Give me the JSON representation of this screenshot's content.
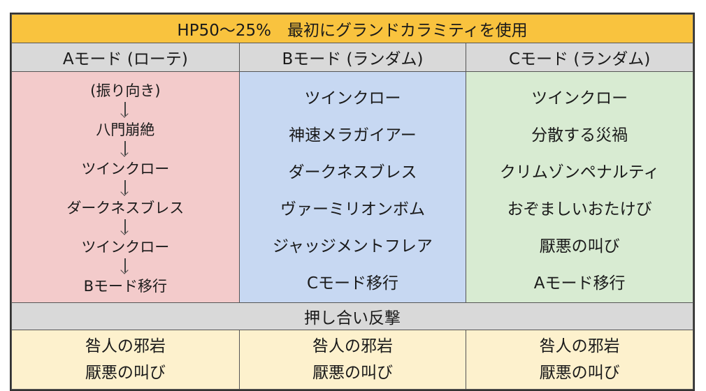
{
  "title": "HP50～25%　最初にグランドカラミティを使用",
  "columns": [
    {
      "header": "Aモード (ローテ)"
    },
    {
      "header": "Bモード (ランダム)"
    },
    {
      "header": "Cモード (ランダム)"
    }
  ],
  "mode_a_flow": [
    "(振り向き)",
    "八門崩絶",
    "ツインクロー",
    "ダークネスブレス",
    "ツインクロー",
    "Bモード移行"
  ],
  "mode_b_list": [
    "ツインクロー",
    "神速メラガイアー",
    "ダークネスブレス",
    "ヴァーミリオンボム",
    "ジャッジメントフレア",
    "Cモード移行"
  ],
  "mode_c_list": [
    "ツインクロー",
    "分散する災禍",
    "クリムゾンペナルティ",
    "おぞましいおたけび",
    "厭悪の叫び",
    "Aモード移行"
  ],
  "push_back_label": "押し合い反撃",
  "push_back_actions": [
    [
      "咎人の邪岩",
      "厭悪の叫び"
    ],
    [
      "咎人の邪岩",
      "厭悪の叫び"
    ],
    [
      "咎人の邪岩",
      "厭悪の叫び"
    ]
  ],
  "colors": {
    "title_bg": "#f9c33e",
    "header_bg": "#d9d9d9",
    "mode_a_bg": "#f3cbcb",
    "mode_b_bg": "#c7d8f2",
    "mode_c_bg": "#d8ebd2",
    "push_bg": "#d9d9d9",
    "bottom_bg": "#fdf1cd"
  }
}
